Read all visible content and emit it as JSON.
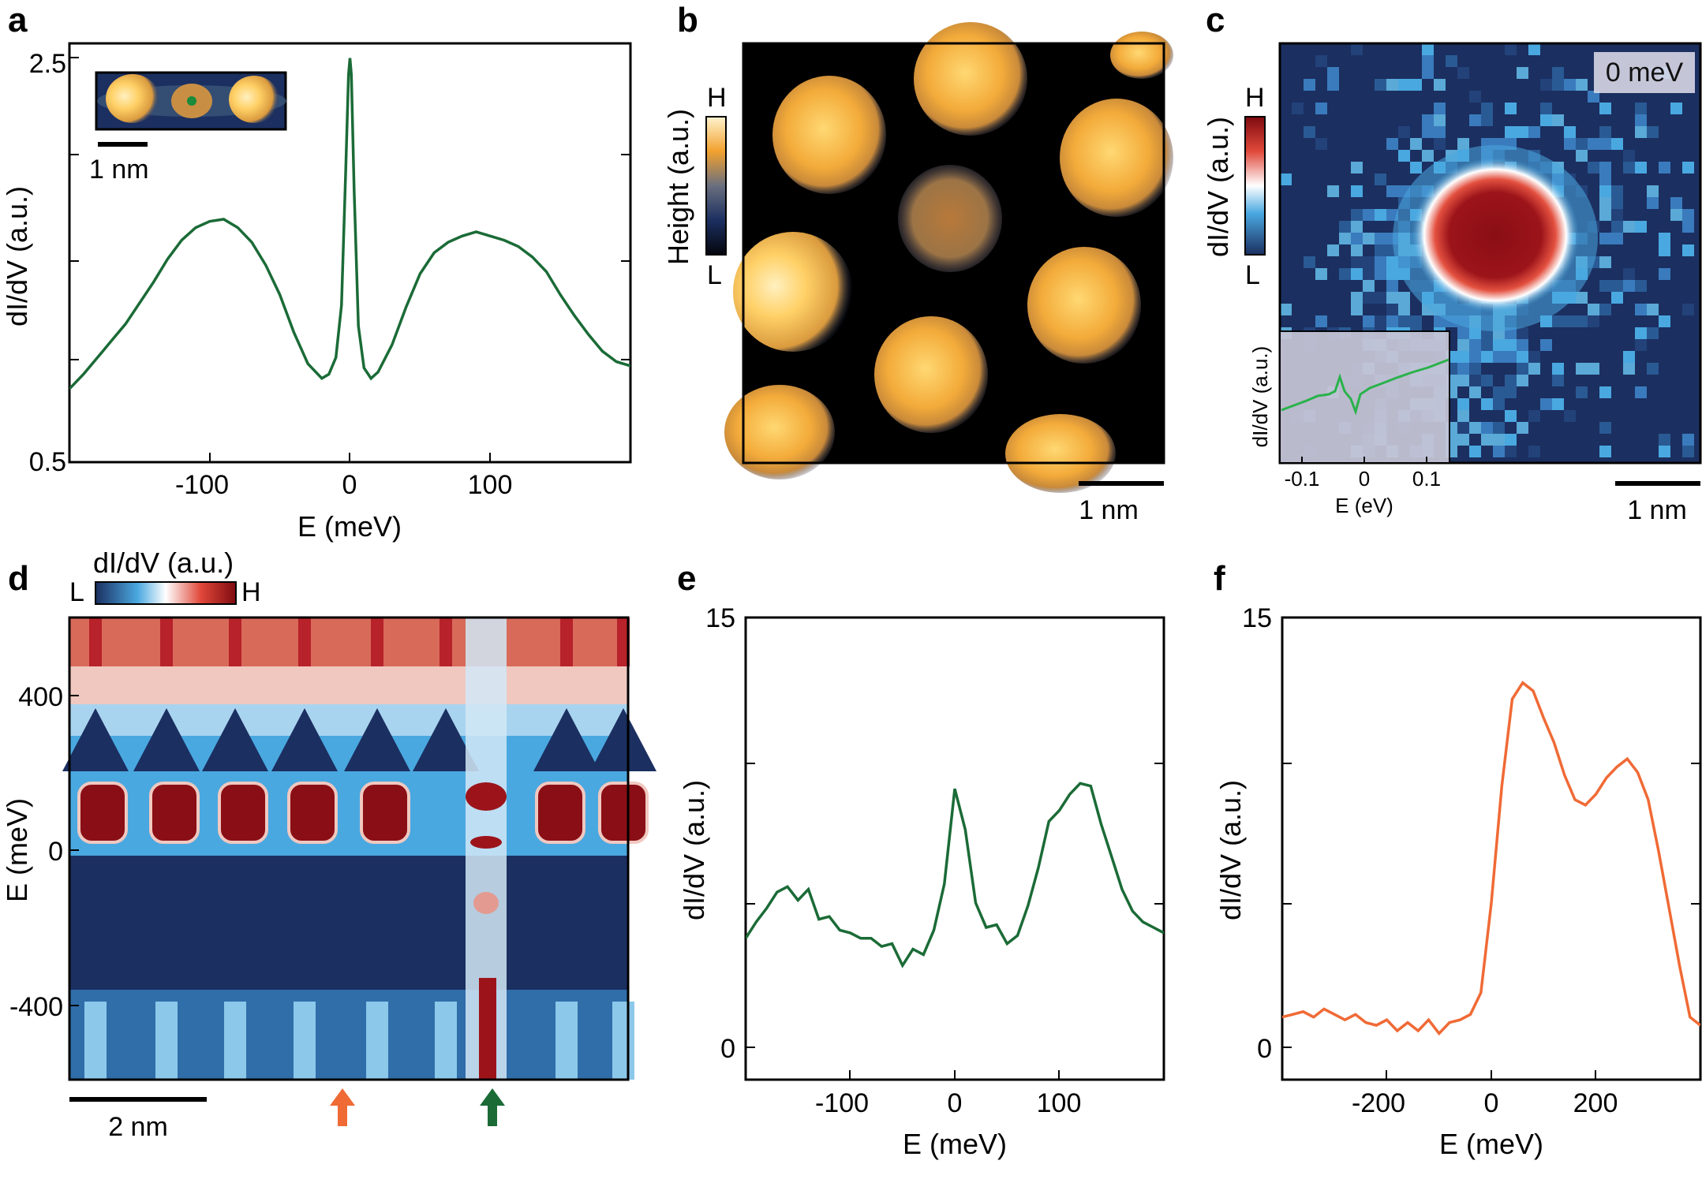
{
  "colors": {
    "green": "#1b6b37",
    "orange": "#f06a35",
    "navy": "#1b2f60",
    "inset_green": "#2ab24b"
  },
  "panels": {
    "a": {
      "label": "a",
      "xlabel": "E (meV)",
      "ylabel": "dI/dV (a.u.)",
      "inset_scale": "1 nm"
    },
    "b": {
      "label": "b",
      "cbar_title": "Height (a.u.)",
      "cbar_high": "H",
      "cbar_low": "L",
      "scale": "1 nm"
    },
    "c": {
      "label": "c",
      "cbar_title": "dI/dV (a.u.)",
      "cbar_high": "H",
      "cbar_low": "L",
      "scale": "1 nm",
      "energy_tag": "0 meV",
      "inset": {
        "ylabel": "dI/dV (a.u.)",
        "xlabel": "E (eV)",
        "ticks": [
          "-0.1",
          "0",
          "0.1"
        ]
      }
    },
    "d": {
      "label": "d",
      "cbar_title": "dI/dV (a.u.)",
      "cbar_low": "L",
      "cbar_high": "H",
      "ylabel": "E (meV)",
      "scale": "2 nm",
      "yticks": [
        "400",
        "0",
        "-400"
      ],
      "arrows": [
        "orange-arrow",
        "green-arrow"
      ]
    },
    "e": {
      "label": "e"
    },
    "f": {
      "label": "f"
    }
  },
  "chart_data": [
    {
      "id": "a",
      "type": "line",
      "xlabel": "E (meV)",
      "ylabel": "dI/dV (a.u.)",
      "xlim": [
        -200,
        200
      ],
      "ylim": [
        0.5,
        2.5
      ],
      "xticks": [
        -100,
        0,
        100
      ],
      "ytick_labels": [
        "2.5",
        "0.5"
      ],
      "x": [
        -200,
        -190,
        -180,
        -170,
        -160,
        -150,
        -140,
        -130,
        -120,
        -110,
        -100,
        -90,
        -80,
        -70,
        -60,
        -50,
        -40,
        -30,
        -20,
        -15,
        -10,
        -6,
        -3,
        -1,
        0,
        1,
        3,
        6,
        10,
        15,
        20,
        30,
        40,
        50,
        60,
        70,
        80,
        90,
        100,
        110,
        120,
        130,
        140,
        150,
        160,
        170,
        180,
        190,
        200
      ],
      "y": [
        0.85,
        0.92,
        1.0,
        1.08,
        1.16,
        1.26,
        1.36,
        1.47,
        1.56,
        1.62,
        1.65,
        1.66,
        1.62,
        1.55,
        1.44,
        1.3,
        1.12,
        0.97,
        0.9,
        0.92,
        1.0,
        1.25,
        1.9,
        2.35,
        2.43,
        2.35,
        1.8,
        1.15,
        0.95,
        0.9,
        0.93,
        1.06,
        1.24,
        1.4,
        1.5,
        1.55,
        1.58,
        1.6,
        1.58,
        1.56,
        1.53,
        1.48,
        1.41,
        1.3,
        1.2,
        1.11,
        1.03,
        0.98,
        0.96
      ]
    },
    {
      "id": "e",
      "type": "line",
      "xlabel": "E (meV)",
      "ylabel": "dI/dV (a.u.)",
      "xlim": [
        -200,
        200
      ],
      "ylim": [
        -2,
        15
      ],
      "xticks": [
        -100,
        0,
        100
      ],
      "ytick_labels": [
        "15",
        "0"
      ],
      "x": [
        -200,
        -190,
        -180,
        -170,
        -160,
        -150,
        -140,
        -130,
        -120,
        -110,
        -100,
        -90,
        -80,
        -70,
        -60,
        -50,
        -40,
        -30,
        -20,
        -10,
        0,
        10,
        20,
        30,
        40,
        50,
        60,
        70,
        80,
        90,
        100,
        110,
        120,
        130,
        140,
        150,
        160,
        170,
        180,
        190,
        200
      ],
      "y": [
        3.2,
        3.8,
        4.3,
        4.9,
        5.1,
        4.6,
        5.0,
        3.9,
        4.0,
        3.5,
        3.4,
        3.2,
        3.2,
        2.9,
        3.0,
        2.2,
        2.8,
        2.6,
        3.5,
        5.2,
        8.7,
        7.2,
        4.5,
        3.6,
        3.7,
        3.0,
        3.3,
        4.4,
        5.8,
        7.5,
        7.9,
        8.5,
        8.9,
        8.8,
        7.4,
        6.2,
        5.0,
        4.2,
        3.8,
        3.6,
        3.4
      ]
    },
    {
      "id": "f",
      "type": "line",
      "xlabel": "E (meV)",
      "ylabel": "dI/dV (a.u.)",
      "xlim": [
        -400,
        400
      ],
      "ylim": [
        -2,
        15
      ],
      "xticks": [
        -200,
        0,
        200
      ],
      "ytick_labels": [
        "15",
        "0"
      ],
      "x": [
        -400,
        -380,
        -360,
        -340,
        -320,
        -300,
        -280,
        -260,
        -240,
        -220,
        -200,
        -180,
        -160,
        -140,
        -120,
        -100,
        -80,
        -60,
        -40,
        -20,
        0,
        20,
        40,
        60,
        80,
        100,
        120,
        140,
        160,
        180,
        200,
        220,
        240,
        260,
        280,
        300,
        320,
        340,
        360,
        380,
        400
      ],
      "y": [
        0.3,
        0.4,
        0.5,
        0.3,
        0.6,
        0.4,
        0.2,
        0.4,
        0.1,
        0.0,
        0.2,
        -0.2,
        0.1,
        -0.2,
        0.2,
        -0.3,
        0.1,
        0.2,
        0.4,
        1.2,
        4.5,
        8.8,
        12.0,
        12.6,
        12.3,
        11.3,
        10.4,
        9.2,
        8.3,
        8.1,
        8.5,
        9.1,
        9.5,
        9.8,
        9.3,
        8.3,
        6.4,
        4.3,
        2.2,
        0.3,
        0.0
      ]
    }
  ]
}
